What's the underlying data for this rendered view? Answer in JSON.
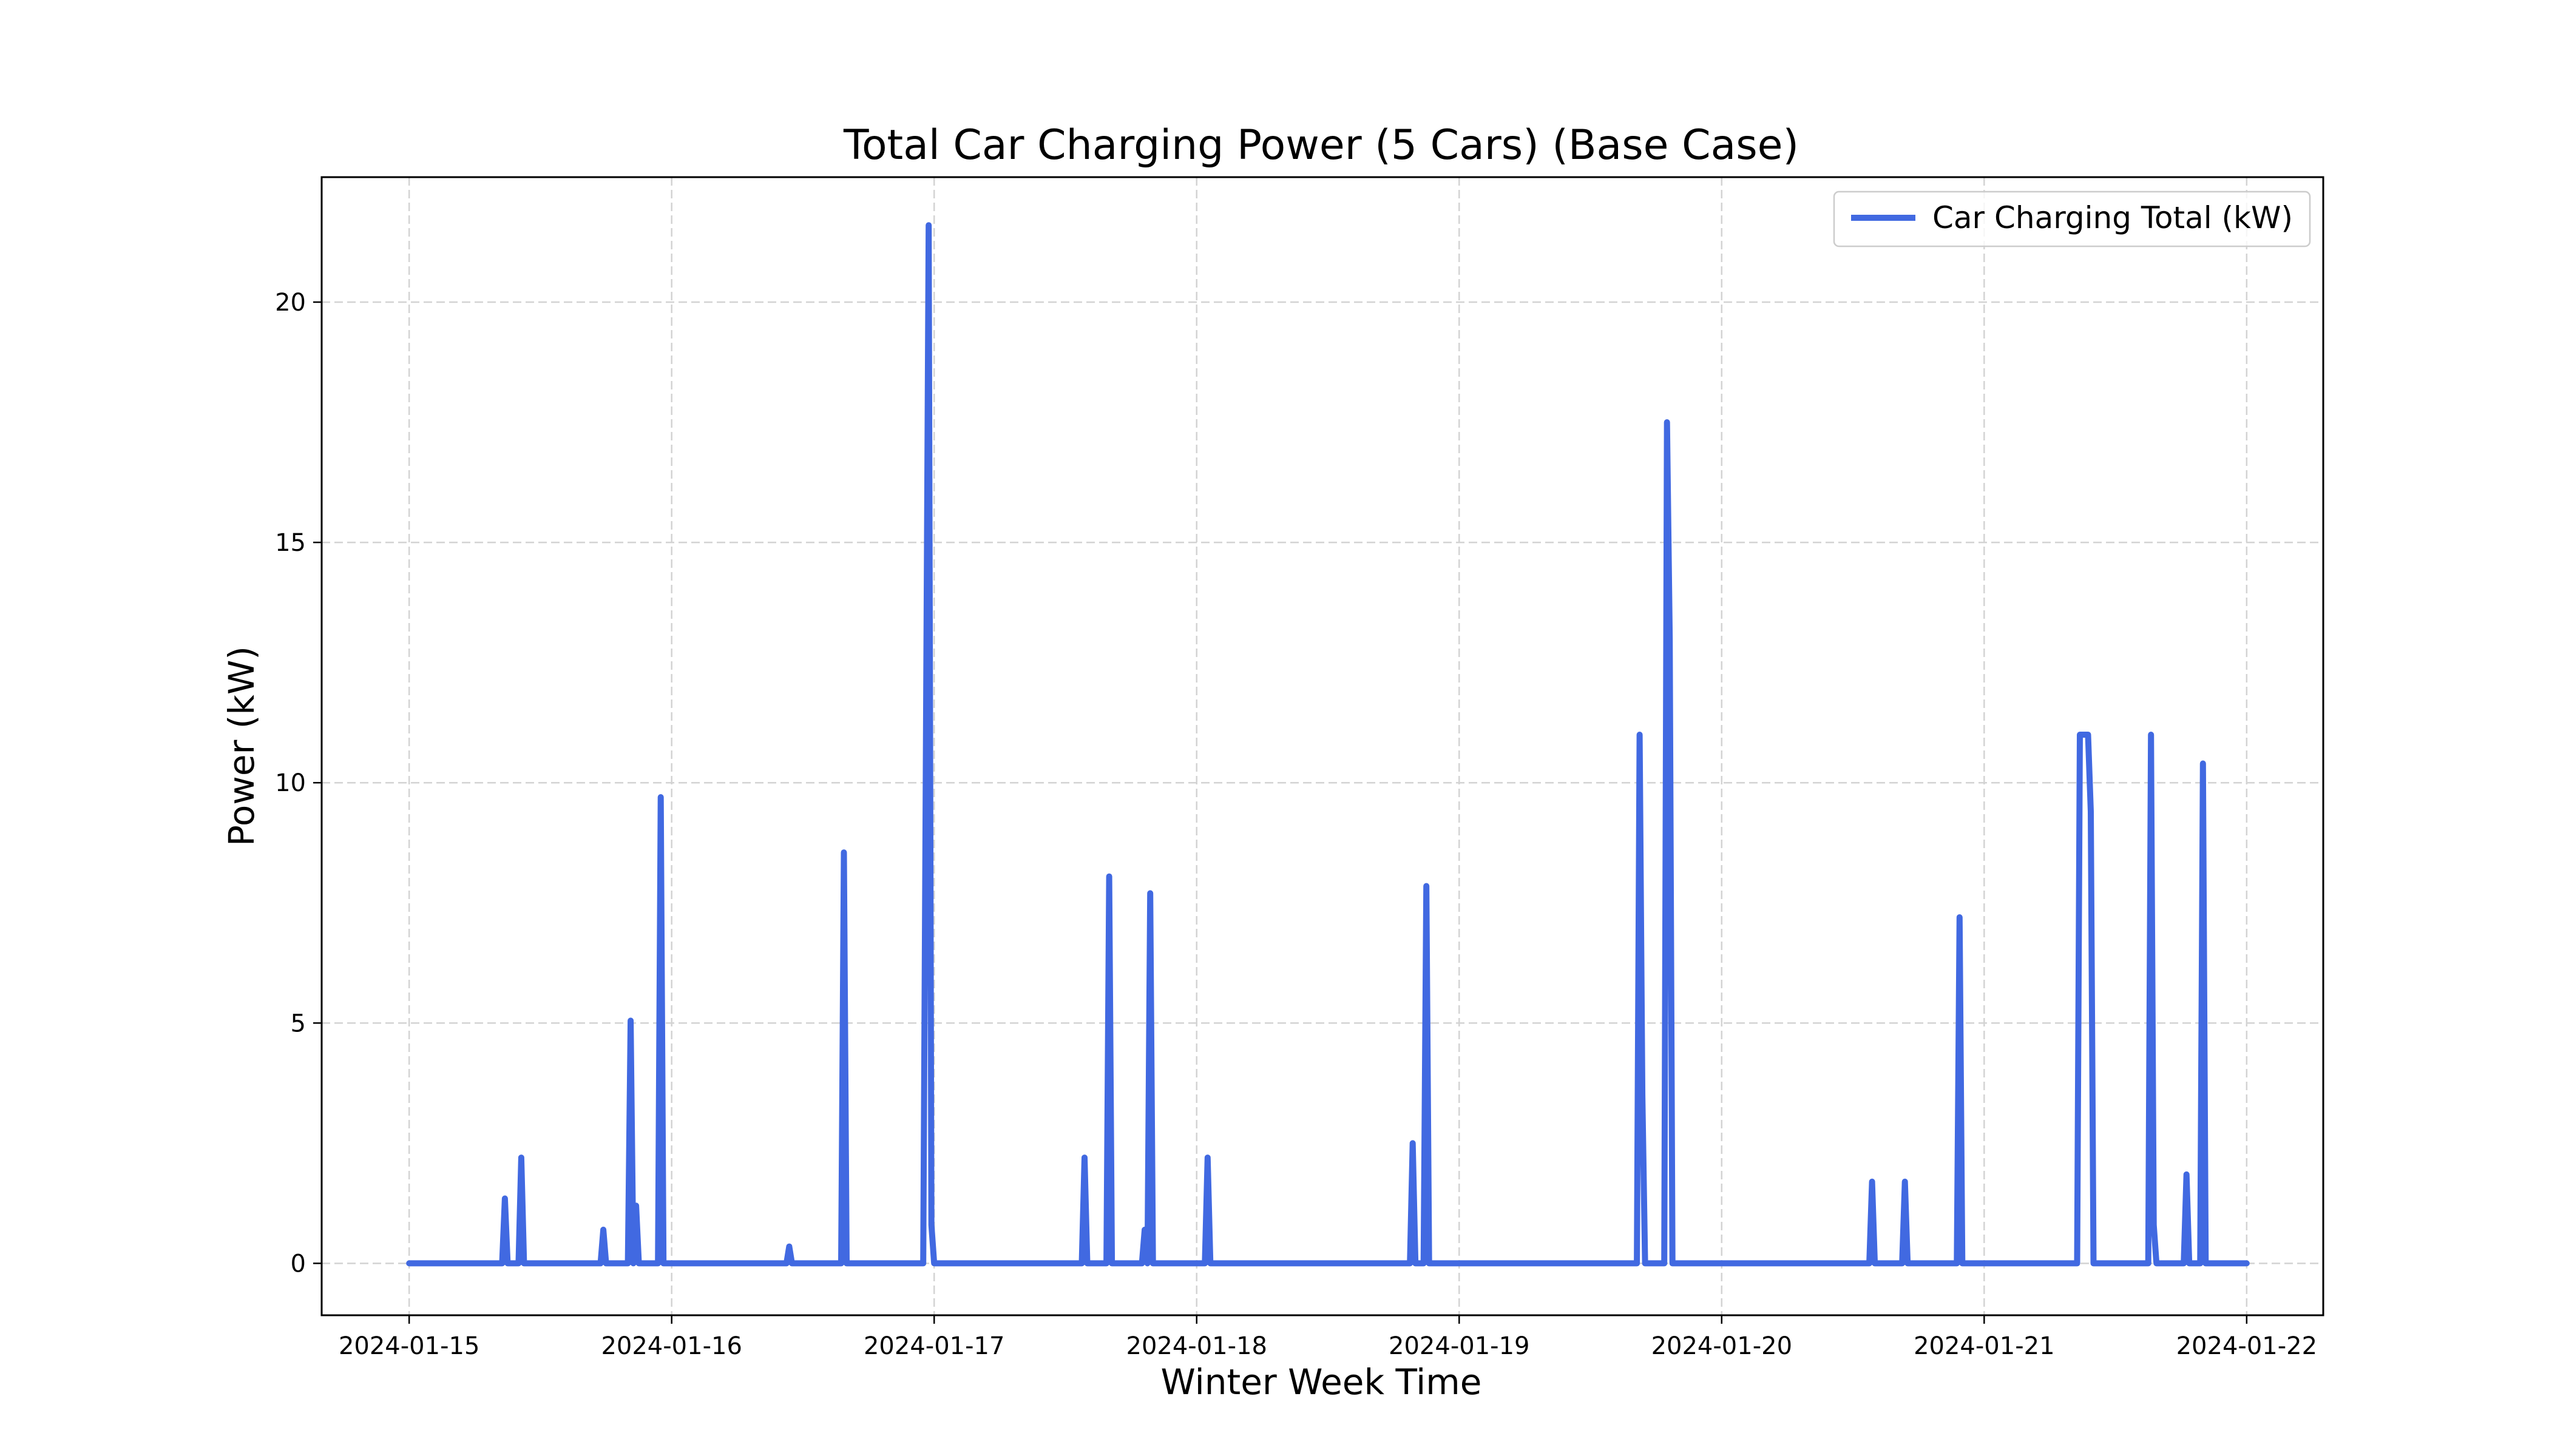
{
  "chart_data": {
    "type": "line",
    "title": "Total Car Charging Power (5 Cars) (Base Case)",
    "xlabel": "Winter Week Time",
    "ylabel": "Power (kW)",
    "x_axis_type": "datetime",
    "xlim": [
      "2024-01-14T16:00",
      "2024-01-22T07:00"
    ],
    "ylim": [
      -1.08,
      22.6
    ],
    "xticks": [
      "2024-01-15",
      "2024-01-16",
      "2024-01-17",
      "2024-01-18",
      "2024-01-19",
      "2024-01-20",
      "2024-01-21",
      "2024-01-22"
    ],
    "yticks": [
      0,
      5,
      10,
      15,
      20
    ],
    "grid": true,
    "legend_position": "top-right",
    "series": [
      {
        "name": "Car Charging Total (kW)",
        "color": "#4169e1",
        "points": [
          [
            "2024-01-15T00:00",
            0
          ],
          [
            "2024-01-15T08:30",
            0
          ],
          [
            "2024-01-15T08:45",
            1.35
          ],
          [
            "2024-01-15T09:00",
            0
          ],
          [
            "2024-01-15T10:00",
            0
          ],
          [
            "2024-01-15T10:15",
            2.2
          ],
          [
            "2024-01-15T10:30",
            0
          ],
          [
            "2024-01-15T17:30",
            0
          ],
          [
            "2024-01-15T17:45",
            0.7
          ],
          [
            "2024-01-15T18:00",
            0
          ],
          [
            "2024-01-15T20:00",
            0
          ],
          [
            "2024-01-15T20:15",
            5.05
          ],
          [
            "2024-01-15T20:30",
            0
          ],
          [
            "2024-01-15T20:45",
            1.2
          ],
          [
            "2024-01-15T21:00",
            0
          ],
          [
            "2024-01-15T22:45",
            0
          ],
          [
            "2024-01-15T23:00",
            9.7
          ],
          [
            "2024-01-15T23:15",
            0
          ],
          [
            "2024-01-16T10:30",
            0
          ],
          [
            "2024-01-16T10:45",
            0.35
          ],
          [
            "2024-01-16T11:00",
            0
          ],
          [
            "2024-01-16T15:30",
            0
          ],
          [
            "2024-01-16T15:45",
            8.55
          ],
          [
            "2024-01-16T16:00",
            0
          ],
          [
            "2024-01-16T23:00",
            0
          ],
          [
            "2024-01-16T23:30",
            21.6
          ],
          [
            "2024-01-16T23:45",
            0.8
          ],
          [
            "2024-01-17T00:00",
            0
          ],
          [
            "2024-01-17T13:30",
            0
          ],
          [
            "2024-01-17T13:45",
            2.2
          ],
          [
            "2024-01-17T14:00",
            0
          ],
          [
            "2024-01-17T15:45",
            0
          ],
          [
            "2024-01-17T16:00",
            8.05
          ],
          [
            "2024-01-17T16:15",
            0
          ],
          [
            "2024-01-17T19:00",
            0
          ],
          [
            "2024-01-17T19:15",
            0.7
          ],
          [
            "2024-01-17T19:30",
            0
          ],
          [
            "2024-01-17T19:45",
            7.7
          ],
          [
            "2024-01-17T20:00",
            0
          ],
          [
            "2024-01-18T00:45",
            0
          ],
          [
            "2024-01-18T01:00",
            2.2
          ],
          [
            "2024-01-18T01:15",
            0
          ],
          [
            "2024-01-18T19:30",
            0
          ],
          [
            "2024-01-18T19:45",
            2.5
          ],
          [
            "2024-01-18T20:00",
            0
          ],
          [
            "2024-01-18T20:45",
            0
          ],
          [
            "2024-01-18T21:00",
            7.85
          ],
          [
            "2024-01-18T21:15",
            0
          ],
          [
            "2024-01-19T16:15",
            0
          ],
          [
            "2024-01-19T16:30",
            11.0
          ],
          [
            "2024-01-19T16:45",
            3.5
          ],
          [
            "2024-01-19T17:00",
            0
          ],
          [
            "2024-01-19T18:45",
            0
          ],
          [
            "2024-01-19T19:00",
            17.5
          ],
          [
            "2024-01-19T19:15",
            13.0
          ],
          [
            "2024-01-19T19:30",
            0
          ],
          [
            "2024-01-20T13:30",
            0
          ],
          [
            "2024-01-20T13:45",
            1.7
          ],
          [
            "2024-01-20T14:00",
            0
          ],
          [
            "2024-01-20T16:30",
            0
          ],
          [
            "2024-01-20T16:45",
            1.7
          ],
          [
            "2024-01-20T17:00",
            0
          ],
          [
            "2024-01-20T21:30",
            0
          ],
          [
            "2024-01-20T21:45",
            7.2
          ],
          [
            "2024-01-20T22:00",
            0
          ],
          [
            "2024-01-21T08:30",
            0
          ],
          [
            "2024-01-21T08:45",
            11.0
          ],
          [
            "2024-01-21T09:30",
            11.0
          ],
          [
            "2024-01-21T09:45",
            9.4
          ],
          [
            "2024-01-21T10:00",
            0
          ],
          [
            "2024-01-21T15:00",
            0
          ],
          [
            "2024-01-21T15:15",
            11.0
          ],
          [
            "2024-01-21T15:30",
            0.8
          ],
          [
            "2024-01-21T15:45",
            0
          ],
          [
            "2024-01-21T18:15",
            0
          ],
          [
            "2024-01-21T18:30",
            1.85
          ],
          [
            "2024-01-21T18:45",
            0
          ],
          [
            "2024-01-21T19:45",
            0
          ],
          [
            "2024-01-21T20:00",
            10.4
          ],
          [
            "2024-01-21T20:15",
            0
          ],
          [
            "2024-01-22T00:00",
            0
          ]
        ]
      }
    ]
  }
}
